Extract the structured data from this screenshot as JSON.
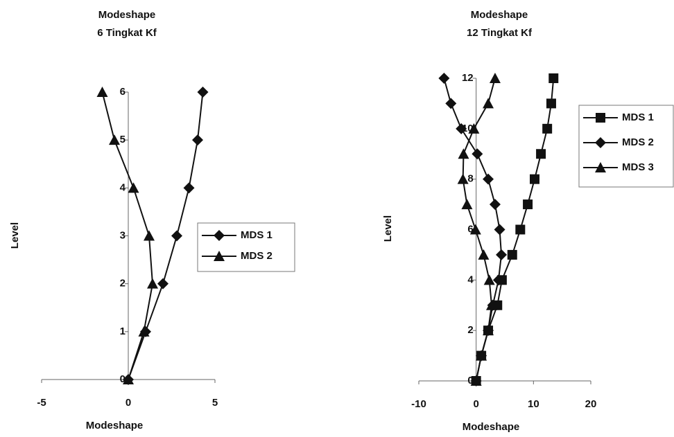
{
  "chart_data": [
    {
      "type": "scatter",
      "title": [
        "Modeshape",
        "6 Tingkat Kf"
      ],
      "xlabel": "Modeshape",
      "ylabel": "Level",
      "xlim": [
        -5,
        5
      ],
      "xticks": [
        -5,
        0,
        5
      ],
      "ylim": [
        0,
        6
      ],
      "yticks": [
        0,
        1,
        2,
        3,
        4,
        5,
        6
      ],
      "legend": "right",
      "series": [
        {
          "name": "MDS 1",
          "color": "#111111",
          "marker": "diamond",
          "x": [
            0,
            1.0,
            2.0,
            2.8,
            3.5,
            4.0,
            4.3
          ],
          "values": [
            0,
            1,
            2,
            3,
            4,
            5,
            6
          ]
        },
        {
          "name": "MDS 2",
          "color": "#111111",
          "marker": "triangle",
          "x": [
            0,
            0.9,
            1.4,
            1.2,
            0.3,
            -0.8,
            -1.5
          ],
          "values": [
            0,
            1,
            2,
            3,
            4,
            5,
            6
          ]
        }
      ]
    },
    {
      "type": "scatter",
      "title": [
        "Modeshape",
        "12 Tingkat Kf"
      ],
      "xlabel": "Modeshape",
      "ylabel": "Level",
      "xlim": [
        -10,
        20
      ],
      "xticks": [
        -10,
        0,
        10,
        20
      ],
      "ylim": [
        0,
        12
      ],
      "yticks": [
        0,
        2,
        4,
        6,
        8,
        10,
        12
      ],
      "legend": "right",
      "series": [
        {
          "name": "MDS 1",
          "color": "#111111",
          "marker": "square",
          "x": [
            0,
            0.9,
            2.1,
            3.7,
            4.5,
            6.3,
            7.7,
            9.0,
            10.2,
            11.3,
            12.4,
            13.1,
            13.5
          ],
          "values": [
            0,
            1,
            2,
            3,
            4,
            5,
            6,
            7,
            8,
            9,
            10,
            11,
            12
          ]
        },
        {
          "name": "MDS 2",
          "color": "#111111",
          "marker": "diamond",
          "x": [
            0,
            0.9,
            2.1,
            2.9,
            3.9,
            4.4,
            4.1,
            3.3,
            2.1,
            0.2,
            -2.6,
            -4.4,
            -5.6
          ],
          "values": [
            0,
            1,
            2,
            3,
            4,
            5,
            6,
            7,
            8,
            9,
            10,
            11,
            12
          ]
        },
        {
          "name": "MDS 3",
          "color": "#111111",
          "marker": "triangle",
          "x": [
            0,
            0.9,
            2.1,
            2.7,
            2.3,
            1.3,
            -0.1,
            -1.6,
            -2.3,
            -2.2,
            -0.4,
            2.1,
            3.3
          ],
          "values": [
            0,
            1,
            2,
            3,
            4,
            5,
            6,
            7,
            8,
            9,
            10,
            11,
            12
          ]
        }
      ]
    }
  ]
}
